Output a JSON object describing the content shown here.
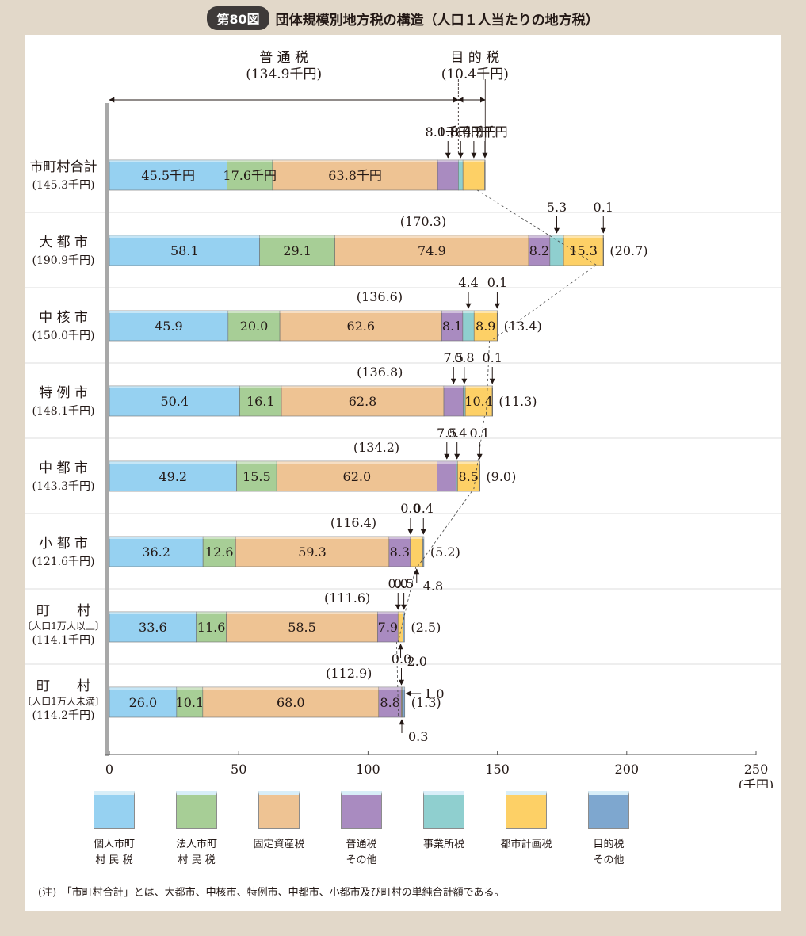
{
  "figure": {
    "badge": "第80図",
    "title": "団体規模別地方税の構造（人口１人当たりの地方税）",
    "note": "(注)　「市町村合計」とは、大都市、中核市、特例市、中都市、小都市及び町村の単純合計額である。"
  },
  "colors": {
    "individual": "#96d1f1",
    "corporate": "#a7ce96",
    "property": "#eec393",
    "other_general": "#a98bc0",
    "business_office": "#8fcfcf",
    "city_planning": "#fdd066",
    "other_purpose": "#7ea7cf",
    "axis": "#a8a8a8"
  },
  "chart_data": {
    "type": "bar",
    "orientation": "horizontal",
    "stacked": true,
    "unit": "(千円)",
    "xlim": [
      0,
      250
    ],
    "xticks": [
      "0",
      "50",
      "100",
      "150",
      "200",
      "250"
    ],
    "legend_position": "bottom",
    "series": [
      {
        "name": "個人市町\n村 民 税",
        "color_key": "individual"
      },
      {
        "name": "法人市町\n村 民 税",
        "color_key": "corporate"
      },
      {
        "name": "固定資産税",
        "color_key": "property"
      },
      {
        "name": "普通税\nその他",
        "color_key": "other_general"
      },
      {
        "name": "事業所税",
        "color_key": "business_office"
      },
      {
        "name": "都市計画税",
        "color_key": "city_planning"
      },
      {
        "name": "目的税\nその他",
        "color_key": "other_purpose"
      }
    ],
    "rows": [
      {
        "label_lines": [
          "市町村合計",
          "(145.3千円)"
        ],
        "values": [
          45.5,
          17.6,
          63.8,
          8.0,
          1.8,
          8.4,
          0.2
        ],
        "inside_labels": [
          "45.5千円",
          "17.6千円",
          "63.8千円",
          "",
          "",
          "",
          ""
        ],
        "general_total": "",
        "purpose_total": ""
      },
      {
        "label_lines": [
          "大 都 市",
          "(190.9千円)"
        ],
        "values": [
          58.1,
          29.1,
          74.9,
          8.2,
          5.3,
          15.3,
          0.1
        ],
        "inside_labels": [
          "58.1",
          "29.1",
          "74.9",
          "8.2",
          "",
          "15.3",
          ""
        ],
        "general_total": "(170.3)",
        "purpose_total": "(20.7)"
      },
      {
        "label_lines": [
          "中 核 市",
          "(150.0千円)"
        ],
        "values": [
          45.9,
          20.0,
          62.6,
          8.1,
          4.4,
          8.9,
          0.1
        ],
        "inside_labels": [
          "45.9",
          "20.0",
          "62.6",
          "8.1",
          "",
          "8.9",
          ""
        ],
        "general_total": "(136.6)",
        "purpose_total": "(13.4)"
      },
      {
        "label_lines": [
          "特 例 市",
          "(148.1千円)"
        ],
        "values": [
          50.4,
          16.1,
          62.8,
          7.5,
          0.8,
          10.4,
          0.1
        ],
        "inside_labels": [
          "50.4",
          "16.1",
          "62.8",
          "",
          "",
          "10.4",
          ""
        ],
        "general_total": "(136.8)",
        "purpose_total": "(11.3)"
      },
      {
        "label_lines": [
          "中 都 市",
          "(143.3千円)"
        ],
        "values": [
          49.2,
          15.5,
          62.0,
          7.5,
          0.4,
          8.5,
          0.1
        ],
        "inside_labels": [
          "49.2",
          "15.5",
          "62.0",
          "",
          "",
          "8.5",
          ""
        ],
        "general_total": "(134.2)",
        "purpose_total": "(9.0)"
      },
      {
        "label_lines": [
          "小 都 市",
          "(121.6千円)"
        ],
        "values": [
          36.2,
          12.6,
          59.3,
          8.3,
          0.0,
          4.8,
          0.4
        ],
        "inside_labels": [
          "36.2",
          "12.6",
          "59.3",
          "8.3",
          "",
          "",
          ""
        ],
        "general_total": "(116.4)",
        "purpose_total": "(5.2)"
      },
      {
        "label_lines": [
          "町　　村",
          "〔人口1万人以上〕",
          "(114.1千円)"
        ],
        "values": [
          33.6,
          11.6,
          58.5,
          7.9,
          0.0,
          2.0,
          0.5
        ],
        "inside_labels": [
          "33.6",
          "11.6",
          "58.5",
          "7.9",
          "",
          "",
          ""
        ],
        "general_total": "(111.6)",
        "purpose_total": "(2.5)"
      },
      {
        "label_lines": [
          "町　　村",
          "〔人口1万人未満〕",
          "(114.2千円)"
        ],
        "values": [
          26.0,
          10.1,
          68.0,
          8.8,
          0.0,
          0.3,
          1.0
        ],
        "inside_labels": [
          "26.0",
          "10.1",
          "68.0",
          "8.8",
          "",
          "",
          ""
        ],
        "general_total": "(112.9)",
        "purpose_total": "(1.3)"
      }
    ],
    "callouts": [
      {
        "row": 0,
        "segment": 3,
        "text": "8.0千円",
        "side": "above"
      },
      {
        "row": 0,
        "segment": 4,
        "text": "1.8千円",
        "side": "above"
      },
      {
        "row": 0,
        "segment": 5,
        "text": "8.4千円",
        "side": "above"
      },
      {
        "row": 0,
        "segment": 6,
        "text": "0.2千円",
        "side": "above"
      },
      {
        "row": 1,
        "segment": 4,
        "text": "5.3",
        "side": "above"
      },
      {
        "row": 1,
        "segment": 6,
        "text": "0.1",
        "side": "above"
      },
      {
        "row": 2,
        "segment": 4,
        "text": "4.4",
        "side": "above"
      },
      {
        "row": 2,
        "segment": 6,
        "text": "0.1",
        "side": "above"
      },
      {
        "row": 3,
        "segment": 3,
        "text": "7.5",
        "side": "above"
      },
      {
        "row": 3,
        "segment": 4,
        "text": "0.8",
        "side": "above"
      },
      {
        "row": 3,
        "segment": 6,
        "text": "0.1",
        "side": "above"
      },
      {
        "row": 4,
        "segment": 3,
        "text": "7.5",
        "side": "above"
      },
      {
        "row": 4,
        "segment": 4,
        "text": "0.4",
        "side": "above"
      },
      {
        "row": 4,
        "segment": 6,
        "text": "0.1",
        "side": "above"
      },
      {
        "row": 5,
        "segment": 4,
        "text": "0.0",
        "side": "above"
      },
      {
        "row": 5,
        "segment": 6,
        "text": "0.4",
        "side": "above"
      },
      {
        "row": 5,
        "segment": 5,
        "text": "4.8",
        "side": "below"
      },
      {
        "row": 6,
        "segment": 4,
        "text": "0.0",
        "side": "above"
      },
      {
        "row": 6,
        "segment": 6,
        "text": "0.5",
        "side": "above"
      },
      {
        "row": 6,
        "segment": 5,
        "text": "2.0",
        "side": "below"
      },
      {
        "row": 7,
        "segment": 4,
        "text": "0.0",
        "side": "above"
      },
      {
        "row": 7,
        "segment": 6,
        "text": "1.0",
        "side": "right"
      },
      {
        "row": 7,
        "segment": 5,
        "text": "0.3",
        "side": "below"
      }
    ],
    "brackets": [
      {
        "label_lines": [
          "普 通 税",
          "(134.9千円)"
        ],
        "from": 0,
        "to": 134.9
      },
      {
        "label_lines": [
          "目 的 税",
          "(10.4千円)"
        ],
        "from": 134.9,
        "to": 145.3
      }
    ]
  }
}
